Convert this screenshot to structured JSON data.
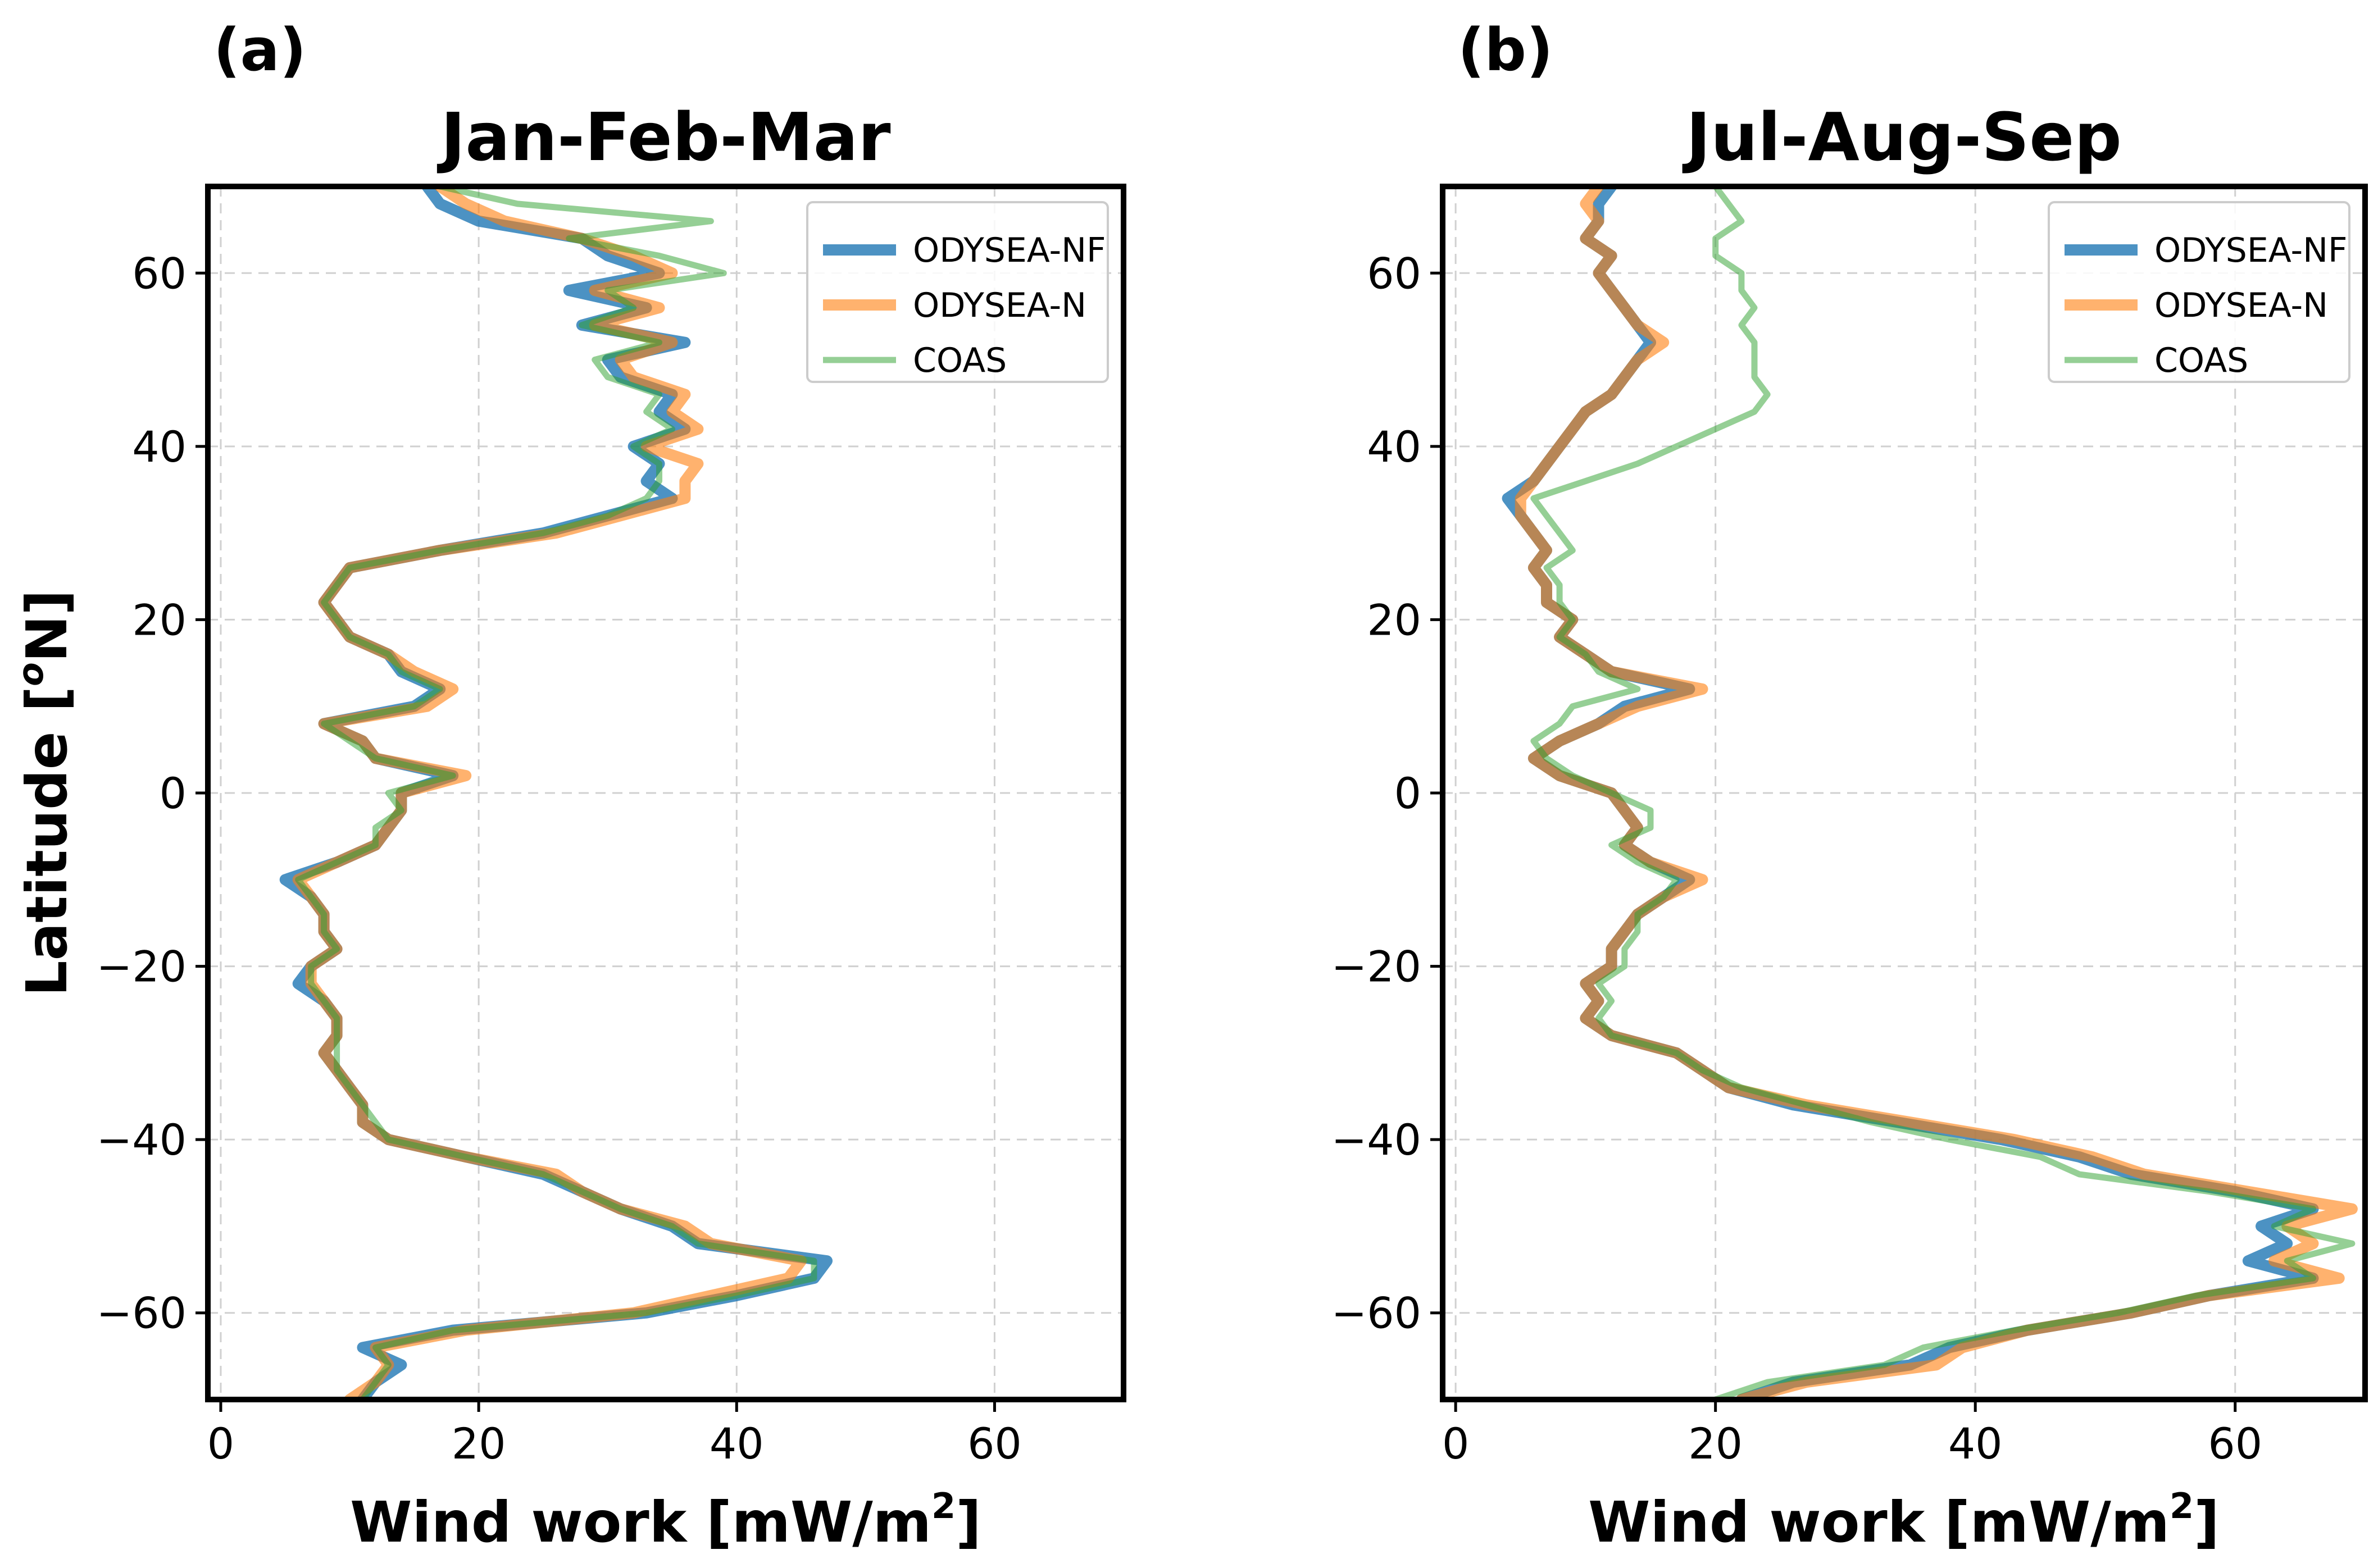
{
  "chart_data": [
    {
      "type": "line",
      "panel_label": "(a)",
      "title": "Jan-Feb-Mar",
      "xlabel": "Wind work [mW/m",
      "xlabel_sup": "2",
      "xlabel_close": "]",
      "ylabel": "Latitude [°N]",
      "ylabel_pre": "Latitude [",
      "ylabel_sup": "o",
      "ylabel_post": "N]",
      "xlim": [
        -1,
        70
      ],
      "ylim": [
        -70,
        70
      ],
      "xticks": [
        0,
        20,
        40,
        60
      ],
      "yticks": [
        -60,
        -40,
        -20,
        0,
        20,
        40,
        60
      ],
      "xtick_labels": [
        "0",
        "20",
        "40",
        "60"
      ],
      "ytick_labels": [
        "−60",
        "−40",
        "−20",
        "0",
        "20",
        "40",
        "60"
      ],
      "grid": true,
      "legend_position": "top-right",
      "latitudes": [
        -70,
        -68,
        -66,
        -64,
        -62,
        -60,
        -58,
        -56,
        -54,
        -52,
        -50,
        -48,
        -46,
        -44,
        -42,
        -40,
        -38,
        -36,
        -34,
        -32,
        -30,
        -28,
        -26,
        -24,
        -22,
        -20,
        -18,
        -16,
        -14,
        -12,
        -10,
        -8,
        -6,
        -4,
        -2,
        0,
        2,
        4,
        6,
        8,
        10,
        12,
        14,
        16,
        18,
        20,
        22,
        24,
        26,
        28,
        30,
        32,
        34,
        36,
        38,
        40,
        42,
        44,
        46,
        48,
        50,
        52,
        54,
        56,
        58,
        60,
        62,
        64,
        66,
        68,
        70
      ],
      "series": [
        {
          "name": "ODYSEA-NF",
          "color": "#1f77b4",
          "width": 20,
          "opacity": 0.8,
          "values": [
            11,
            12,
            14,
            11,
            18,
            33,
            40,
            46,
            47,
            37,
            35,
            31,
            28,
            25,
            19,
            13,
            11,
            11,
            10,
            9,
            8,
            9,
            9,
            8,
            6,
            7,
            9,
            8,
            8,
            7,
            5,
            9,
            12,
            13,
            14,
            14,
            18,
            12,
            11,
            8,
            15,
            17,
            14,
            13,
            10,
            9,
            8,
            9,
            10,
            17,
            25,
            30,
            35,
            33,
            34,
            32,
            36,
            34,
            35,
            31,
            30,
            36,
            28,
            33,
            27,
            34,
            30,
            28,
            20,
            17,
            16
          ]
        },
        {
          "name": "ODYSEA-N",
          "color": "#ff7f0e",
          "width": 20,
          "opacity": 0.6,
          "values": [
            10,
            12,
            13,
            12,
            19,
            32,
            38,
            44,
            45,
            38,
            36,
            31,
            28,
            26,
            19,
            13,
            11,
            11,
            10,
            9,
            8,
            9,
            9,
            8,
            7,
            7,
            9,
            8,
            8,
            7,
            6,
            9,
            12,
            13,
            14,
            14,
            19,
            12,
            11,
            8,
            16,
            18,
            15,
            13,
            10,
            9,
            8,
            9,
            10,
            17,
            26,
            31,
            36,
            36,
            37,
            33,
            37,
            35,
            36,
            32,
            31,
            35,
            29,
            34,
            29,
            35,
            32,
            28,
            22,
            19,
            17
          ]
        },
        {
          "name": "COAS",
          "color": "#2ca02c",
          "width": 11,
          "opacity": 0.5,
          "values": [
            11,
            12,
            13,
            12,
            18,
            33,
            40,
            46,
            46,
            37,
            35,
            31,
            28,
            25,
            19,
            13,
            12,
            11,
            10,
            9,
            9,
            9,
            9,
            8,
            7,
            7,
            9,
            8,
            8,
            7,
            6,
            9,
            12,
            12,
            14,
            13,
            18,
            12,
            10,
            8,
            15,
            17,
            14,
            13,
            10,
            9,
            8,
            9,
            10,
            17,
            25,
            30,
            33,
            34,
            34,
            32,
            35,
            33,
            34,
            30,
            29,
            34,
            28,
            32,
            30,
            39,
            34,
            27,
            38,
            23,
            17
          ]
        }
      ]
    },
    {
      "type": "line",
      "panel_label": "(b)",
      "title": "Jul-Aug-Sep",
      "xlabel": "Wind work [mW/m",
      "xlabel_sup": "2",
      "xlabel_close": "]",
      "xlim": [
        -1,
        70
      ],
      "ylim": [
        -70,
        70
      ],
      "xticks": [
        0,
        20,
        40,
        60
      ],
      "yticks": [
        -60,
        -40,
        -20,
        0,
        20,
        40,
        60
      ],
      "xtick_labels": [
        "0",
        "20",
        "40",
        "60"
      ],
      "ytick_labels": [
        "−60",
        "−40",
        "−20",
        "0",
        "20",
        "40",
        "60"
      ],
      "grid": true,
      "legend_position": "top-right",
      "latitudes": [
        -70,
        -68,
        -66,
        -64,
        -62,
        -60,
        -58,
        -56,
        -54,
        -52,
        -50,
        -48,
        -46,
        -44,
        -42,
        -40,
        -38,
        -36,
        -34,
        -32,
        -30,
        -28,
        -26,
        -24,
        -22,
        -20,
        -18,
        -16,
        -14,
        -12,
        -10,
        -8,
        -6,
        -4,
        -2,
        0,
        2,
        4,
        6,
        8,
        10,
        12,
        14,
        16,
        18,
        20,
        22,
        24,
        26,
        28,
        30,
        32,
        34,
        36,
        38,
        40,
        42,
        44,
        46,
        48,
        50,
        52,
        54,
        56,
        58,
        60,
        62,
        64,
        66,
        68,
        70
      ],
      "series": [
        {
          "name": "ODYSEA-NF",
          "color": "#1f77b4",
          "width": 20,
          "opacity": 0.8,
          "values": [
            22,
            26,
            35,
            38,
            44,
            52,
            58,
            66,
            61,
            64,
            62,
            66,
            60,
            52,
            48,
            42,
            34,
            26,
            21,
            19,
            17,
            12,
            10,
            11,
            10,
            12,
            12,
            13,
            14,
            16,
            18,
            15,
            13,
            14,
            13,
            12,
            8,
            6,
            8,
            11,
            13,
            18,
            12,
            10,
            8,
            9,
            7,
            7,
            6,
            7,
            6,
            5,
            4,
            6,
            7,
            8,
            9,
            10,
            12,
            13,
            14,
            15,
            14,
            13,
            12,
            11,
            12,
            10,
            11,
            11,
            12
          ]
        },
        {
          "name": "ODYSEA-N",
          "color": "#ff7f0e",
          "width": 20,
          "opacity": 0.6,
          "values": [
            22,
            27,
            37,
            39,
            44,
            52,
            58,
            68,
            63,
            66,
            64,
            69,
            61,
            53,
            49,
            43,
            35,
            27,
            21,
            19,
            17,
            12,
            10,
            11,
            10,
            12,
            12,
            13,
            14,
            16,
            19,
            15,
            13,
            14,
            13,
            12,
            8,
            6,
            8,
            11,
            14,
            19,
            12,
            10,
            8,
            9,
            7,
            7,
            6,
            7,
            6,
            5,
            5,
            6,
            7,
            8,
            9,
            10,
            12,
            13,
            14,
            16,
            14,
            13,
            12,
            11,
            12,
            10,
            11,
            10,
            11
          ]
        },
        {
          "name": "COAS",
          "color": "#2ca02c",
          "width": 11,
          "opacity": 0.5,
          "values": [
            20,
            24,
            33,
            36,
            43,
            51,
            57,
            66,
            64,
            69,
            63,
            66,
            58,
            48,
            45,
            38,
            32,
            27,
            22,
            19,
            17,
            12,
            11,
            12,
            11,
            13,
            13,
            14,
            14,
            16,
            17,
            14,
            12,
            15,
            15,
            12,
            9,
            7,
            6,
            8,
            9,
            14,
            11,
            10,
            8,
            9,
            8,
            8,
            7,
            9,
            8,
            7,
            6,
            10,
            14,
            17,
            20,
            23,
            24,
            23,
            23,
            23,
            22,
            23,
            22,
            22,
            20,
            20,
            22,
            21,
            20
          ]
        }
      ]
    }
  ]
}
